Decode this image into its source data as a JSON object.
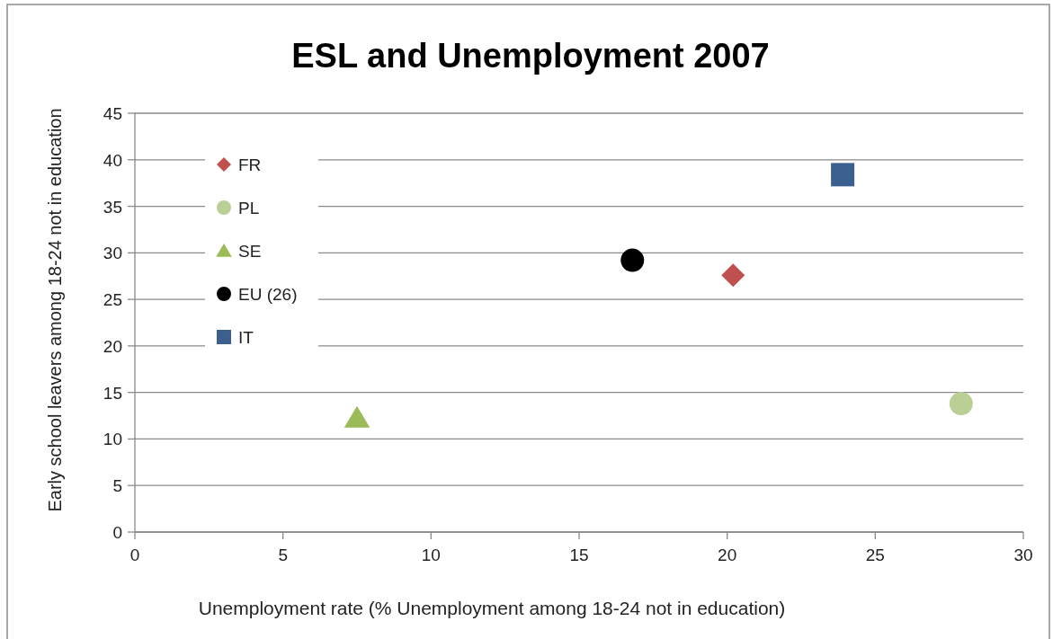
{
  "chart_data": {
    "type": "scatter",
    "title": "ESL and Unemployment 2007",
    "xlabel": "Unemployment rate (% Unemployment among 18-24 not in education)",
    "ylabel": "Early school leavers among 18-24 not in education",
    "xlim": [
      0,
      30
    ],
    "xticks": [
      0,
      5,
      10,
      15,
      20,
      25,
      30
    ],
    "ylim": [
      0,
      45
    ],
    "yticks": [
      0,
      5,
      10,
      15,
      20,
      25,
      30,
      35,
      40,
      45
    ],
    "grid": "y",
    "legend": "top left",
    "series": [
      {
        "name": "FR",
        "color": "#c0504d",
        "marker": "diamond",
        "x": [
          20.2
        ],
        "values": [
          27.6
        ]
      },
      {
        "name": "PL",
        "color": "#b9cf95",
        "marker": "circle",
        "x": [
          27.9
        ],
        "values": [
          13.8
        ]
      },
      {
        "name": "SE",
        "color": "#9bbb59",
        "marker": "triangle",
        "x": [
          7.5
        ],
        "values": [
          12.3
        ]
      },
      {
        "name": "EU (26)",
        "color": "#000000",
        "marker": "circle",
        "x": [
          16.8
        ],
        "values": [
          29.2
        ]
      },
      {
        "name": "IT",
        "color": "#3b5f8f",
        "marker": "square",
        "x": [
          23.9
        ],
        "values": [
          38.4
        ]
      }
    ]
  }
}
